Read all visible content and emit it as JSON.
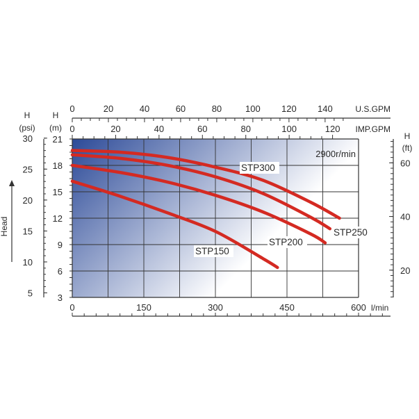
{
  "chart_data": {
    "type": "line",
    "annotation": "2900r/min",
    "axes": {
      "x_bottom": {
        "unit": "l/min",
        "range": [
          0,
          600
        ],
        "ticks": [
          "0",
          "150",
          "300",
          "450",
          "600"
        ]
      },
      "x_top_usgpm": {
        "unit": "U.S.GPM",
        "ticks": [
          "0",
          "20",
          "40",
          "60",
          "80",
          "100",
          "120",
          "140"
        ]
      },
      "x_top_impgpm": {
        "unit": "IMP.GPM",
        "ticks": [
          "0",
          "20",
          "40",
          "60",
          "80",
          "100",
          "120"
        ]
      },
      "y_left_m": {
        "label_symbol": "H",
        "unit": "(m)",
        "range": [
          3,
          21
        ],
        "ticks": [
          "3",
          "6",
          "9",
          "12",
          "15",
          "18",
          "21"
        ]
      },
      "y_left_psi": {
        "label_symbol": "H",
        "unit": "(psi)",
        "ticks": [
          "5",
          "10",
          "15",
          "20",
          "25",
          "30"
        ]
      },
      "y_right_ft": {
        "label_symbol": "H",
        "unit": "(ft)",
        "ticks": [
          "20",
          "40",
          "60"
        ]
      },
      "head_label": "Head"
    },
    "series": [
      {
        "name": "STP300",
        "color": "#d42a22",
        "x": [
          0,
          100,
          200,
          300,
          400,
          500,
          560
        ],
        "y": [
          19.7,
          19.5,
          18.9,
          17.8,
          16.3,
          13.8,
          12.0
        ]
      },
      {
        "name": "STP250",
        "color": "#d42a22",
        "x": [
          0,
          100,
          200,
          300,
          400,
          500,
          540
        ],
        "y": [
          19.2,
          18.8,
          18.0,
          16.7,
          14.8,
          12.1,
          10.8
        ]
      },
      {
        "name": "STP200",
        "color": "#d42a22",
        "x": [
          0,
          100,
          200,
          300,
          400,
          500,
          530
        ],
        "y": [
          18.0,
          17.2,
          16.1,
          14.6,
          12.7,
          10.2,
          9.2
        ]
      },
      {
        "name": "STP150",
        "color": "#d42a22",
        "x": [
          0,
          100,
          200,
          300,
          400,
          430
        ],
        "y": [
          16.2,
          14.5,
          12.6,
          10.5,
          7.4,
          6.4
        ]
      }
    ],
    "grid": true,
    "background_gradient": [
      "#2c4a98",
      "#ffffff"
    ]
  }
}
